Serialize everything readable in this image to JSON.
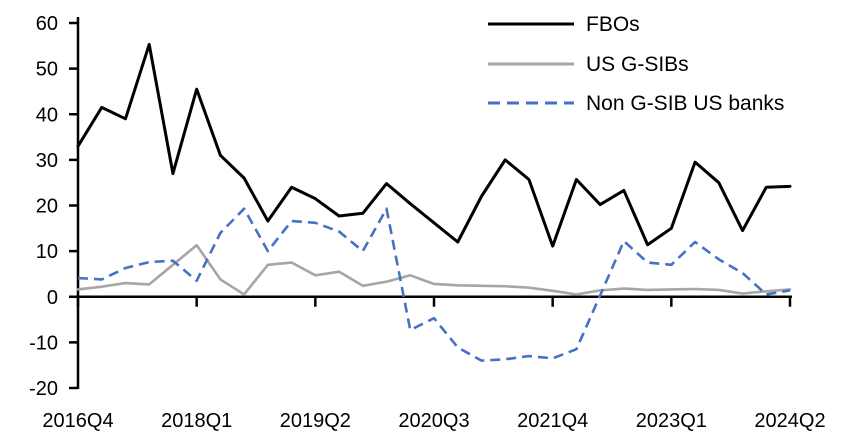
{
  "chart_data": {
    "type": "line",
    "title": "",
    "xlabel": "",
    "ylabel": "",
    "grid": "off",
    "legend_position": "top-right",
    "ylim": [
      -20,
      60
    ],
    "y_ticks": [
      60,
      50,
      40,
      30,
      20,
      10,
      0,
      -10,
      -20
    ],
    "x_categories": [
      "2016Q4",
      "2017Q1",
      "2017Q2",
      "2017Q3",
      "2017Q4",
      "2018Q1",
      "2018Q2",
      "2018Q3",
      "2018Q4",
      "2019Q1",
      "2019Q2",
      "2019Q3",
      "2019Q4",
      "2020Q1",
      "2020Q2",
      "2020Q3",
      "2020Q4",
      "2021Q1",
      "2021Q2",
      "2021Q3",
      "2021Q4",
      "2022Q1",
      "2022Q2",
      "2022Q3",
      "2022Q4",
      "2023Q1",
      "2023Q2",
      "2023Q3",
      "2023Q4",
      "2024Q1",
      "2024Q2"
    ],
    "x_tick_labels": [
      "2016Q4",
      "2018Q1",
      "2019Q2",
      "2020Q3",
      "2021Q4",
      "2023Q1",
      "2024Q2"
    ],
    "x_tick_indices": [
      0,
      5,
      10,
      15,
      20,
      25,
      30
    ],
    "series": [
      {
        "name": "FBOs",
        "color": "#000000",
        "style": "solid",
        "values": [
          33,
          41.5,
          39,
          55.3,
          27,
          45.5,
          31,
          26,
          16.6,
          24,
          21.5,
          17.7,
          18.3,
          24.8,
          20.4,
          16.2,
          12,
          22,
          30,
          25.7,
          11.1,
          25.7,
          20.2,
          23.3,
          11.4,
          15,
          29.5,
          25,
          14.5,
          24,
          24.2
        ]
      },
      {
        "name": "US G-SIBs",
        "color": "#a6a6a6",
        "style": "solid",
        "values": [
          1.6,
          2.2,
          3.0,
          2.7,
          7.0,
          11.3,
          3.8,
          0.5,
          7,
          7.5,
          4.7,
          5.5,
          2.4,
          3.3,
          4.7,
          2.8,
          2.5,
          2.4,
          2.3,
          2,
          1.3,
          0.5,
          1.4,
          1.8,
          1.5,
          1.6,
          1.7,
          1.5,
          0.7,
          1.2,
          1.6
        ]
      },
      {
        "name": "Non G-SIB US banks",
        "color": "#4472c4",
        "style": "dashed",
        "values": [
          4.1,
          3.8,
          6.3,
          7.6,
          7.9,
          3.5,
          14,
          19.3,
          10,
          16.6,
          16.2,
          14.3,
          10,
          19.3,
          -7.3,
          -4.7,
          -11.1,
          -14,
          -13.7,
          -13,
          -13.5,
          -11.5,
          0.3,
          12.2,
          7.5,
          7,
          12,
          8.2,
          5.2,
          0.5,
          1.4
        ]
      }
    ]
  }
}
